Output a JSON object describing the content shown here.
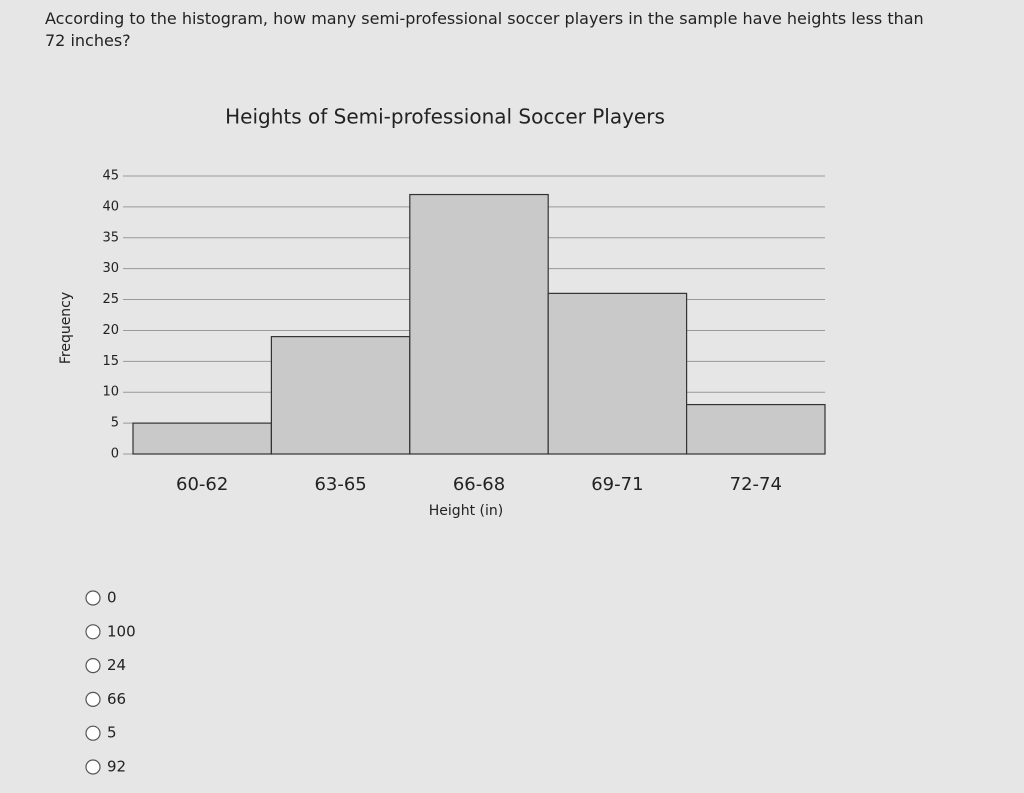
{
  "question": "According to the histogram, how many semi-professional soccer players in the sample have heights less than 72 inches?",
  "chart_data": {
    "type": "bar",
    "title": "Heights of Semi-professional Soccer Players",
    "x_label": "Height (in)",
    "y_label": "Frequency",
    "categories": [
      "60-62",
      "63-65",
      "66-68",
      "69-71",
      "72-74"
    ],
    "values": [
      5,
      19,
      42,
      26,
      8
    ],
    "color": "#c9c9c9",
    "ylim": [
      0,
      45
    ],
    "yticks": [
      0,
      5,
      10,
      15,
      20,
      25,
      30,
      35,
      40,
      45
    ],
    "grid": true
  },
  "options": [
    0,
    100,
    24,
    66,
    5,
    92
  ]
}
